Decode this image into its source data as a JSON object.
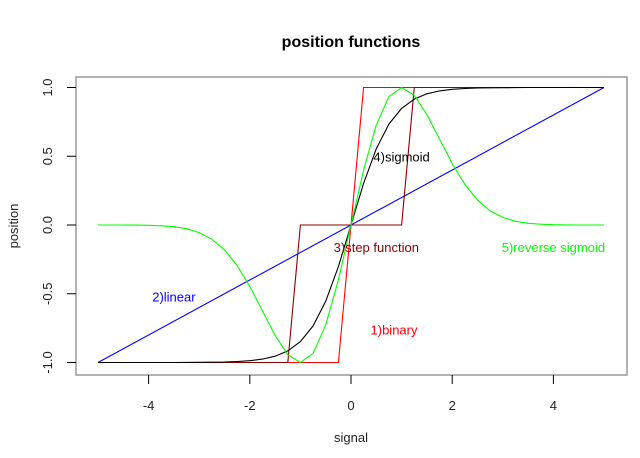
{
  "chart_data": {
    "type": "line",
    "title": "position functions",
    "xlabel": "signal",
    "ylabel": "position",
    "xlim": [
      -5,
      5
    ],
    "ylim": [
      -1,
      1
    ],
    "x_ticks": [
      -4,
      -2,
      0,
      2,
      4
    ],
    "x_tick_labels": [
      "-4",
      "-2",
      "0",
      "2",
      "4"
    ],
    "y_ticks": [
      -1.0,
      -0.5,
      0.0,
      0.5,
      1.0
    ],
    "y_tick_labels": [
      "-1.0",
      "-0.5",
      "0.0",
      "0.5",
      "1.0"
    ],
    "grid": false,
    "legend": "inline annotations",
    "series": [
      {
        "name": "1)binary",
        "color": "#ff0000",
        "x": [
          -5,
          -0.25,
          0.25,
          5
        ],
        "y": [
          -1,
          -1,
          1,
          1
        ]
      },
      {
        "name": "2)linear",
        "color": "#0000ff",
        "x": [
          -5,
          5
        ],
        "y": [
          -1,
          1
        ]
      },
      {
        "name": "3)step function",
        "color": "#8b0000",
        "x": [
          -5,
          -1.25,
          -1.0,
          1.0,
          1.25,
          5
        ],
        "y": [
          -1,
          -1,
          0,
          0,
          1,
          1
        ]
      },
      {
        "name": "4)sigmoid",
        "color": "#000000",
        "x": [
          -5,
          -4,
          -3,
          -2.5,
          -2,
          -1.5,
          -1,
          -0.5,
          0,
          0.5,
          1,
          1.5,
          2,
          2.5,
          3,
          4,
          5
        ],
        "y": [
          -1.0,
          -1.0,
          -1.0,
          -0.99,
          -0.99,
          -0.95,
          -0.85,
          -0.56,
          0.0,
          0.56,
          0.85,
          0.95,
          0.99,
          0.99,
          1.0,
          1.0,
          1.0
        ]
      },
      {
        "name": "5)reverse sigmoid",
        "color": "#00ff00",
        "x": [
          -5,
          -4,
          -3,
          -2.5,
          -2,
          -1.5,
          -1,
          -0.5,
          0,
          0.5,
          1,
          1.5,
          2,
          2.5,
          3,
          4,
          5
        ],
        "y": [
          0.0,
          0.0,
          -0.05,
          -0.17,
          -0.45,
          -0.8,
          -1.0,
          -0.73,
          0.0,
          0.73,
          1.0,
          0.8,
          0.45,
          0.17,
          0.05,
          0.0,
          0.0
        ]
      }
    ],
    "annotations": [
      {
        "text": "1)binary",
        "x": 0.85,
        "y": -0.76,
        "color": "#ff0000"
      },
      {
        "text": "2)linear",
        "x": -3.5,
        "y": -0.52,
        "color": "#0000ff"
      },
      {
        "text": "3)step function",
        "x": 0.5,
        "y": -0.16,
        "color": "#8b0000"
      },
      {
        "text": "4)sigmoid",
        "x": 1.0,
        "y": 0.5,
        "color": "#000000"
      },
      {
        "text": "5)reverse sigmoid",
        "x": 4.0,
        "y": -0.16,
        "color": "#00ff00"
      }
    ]
  }
}
